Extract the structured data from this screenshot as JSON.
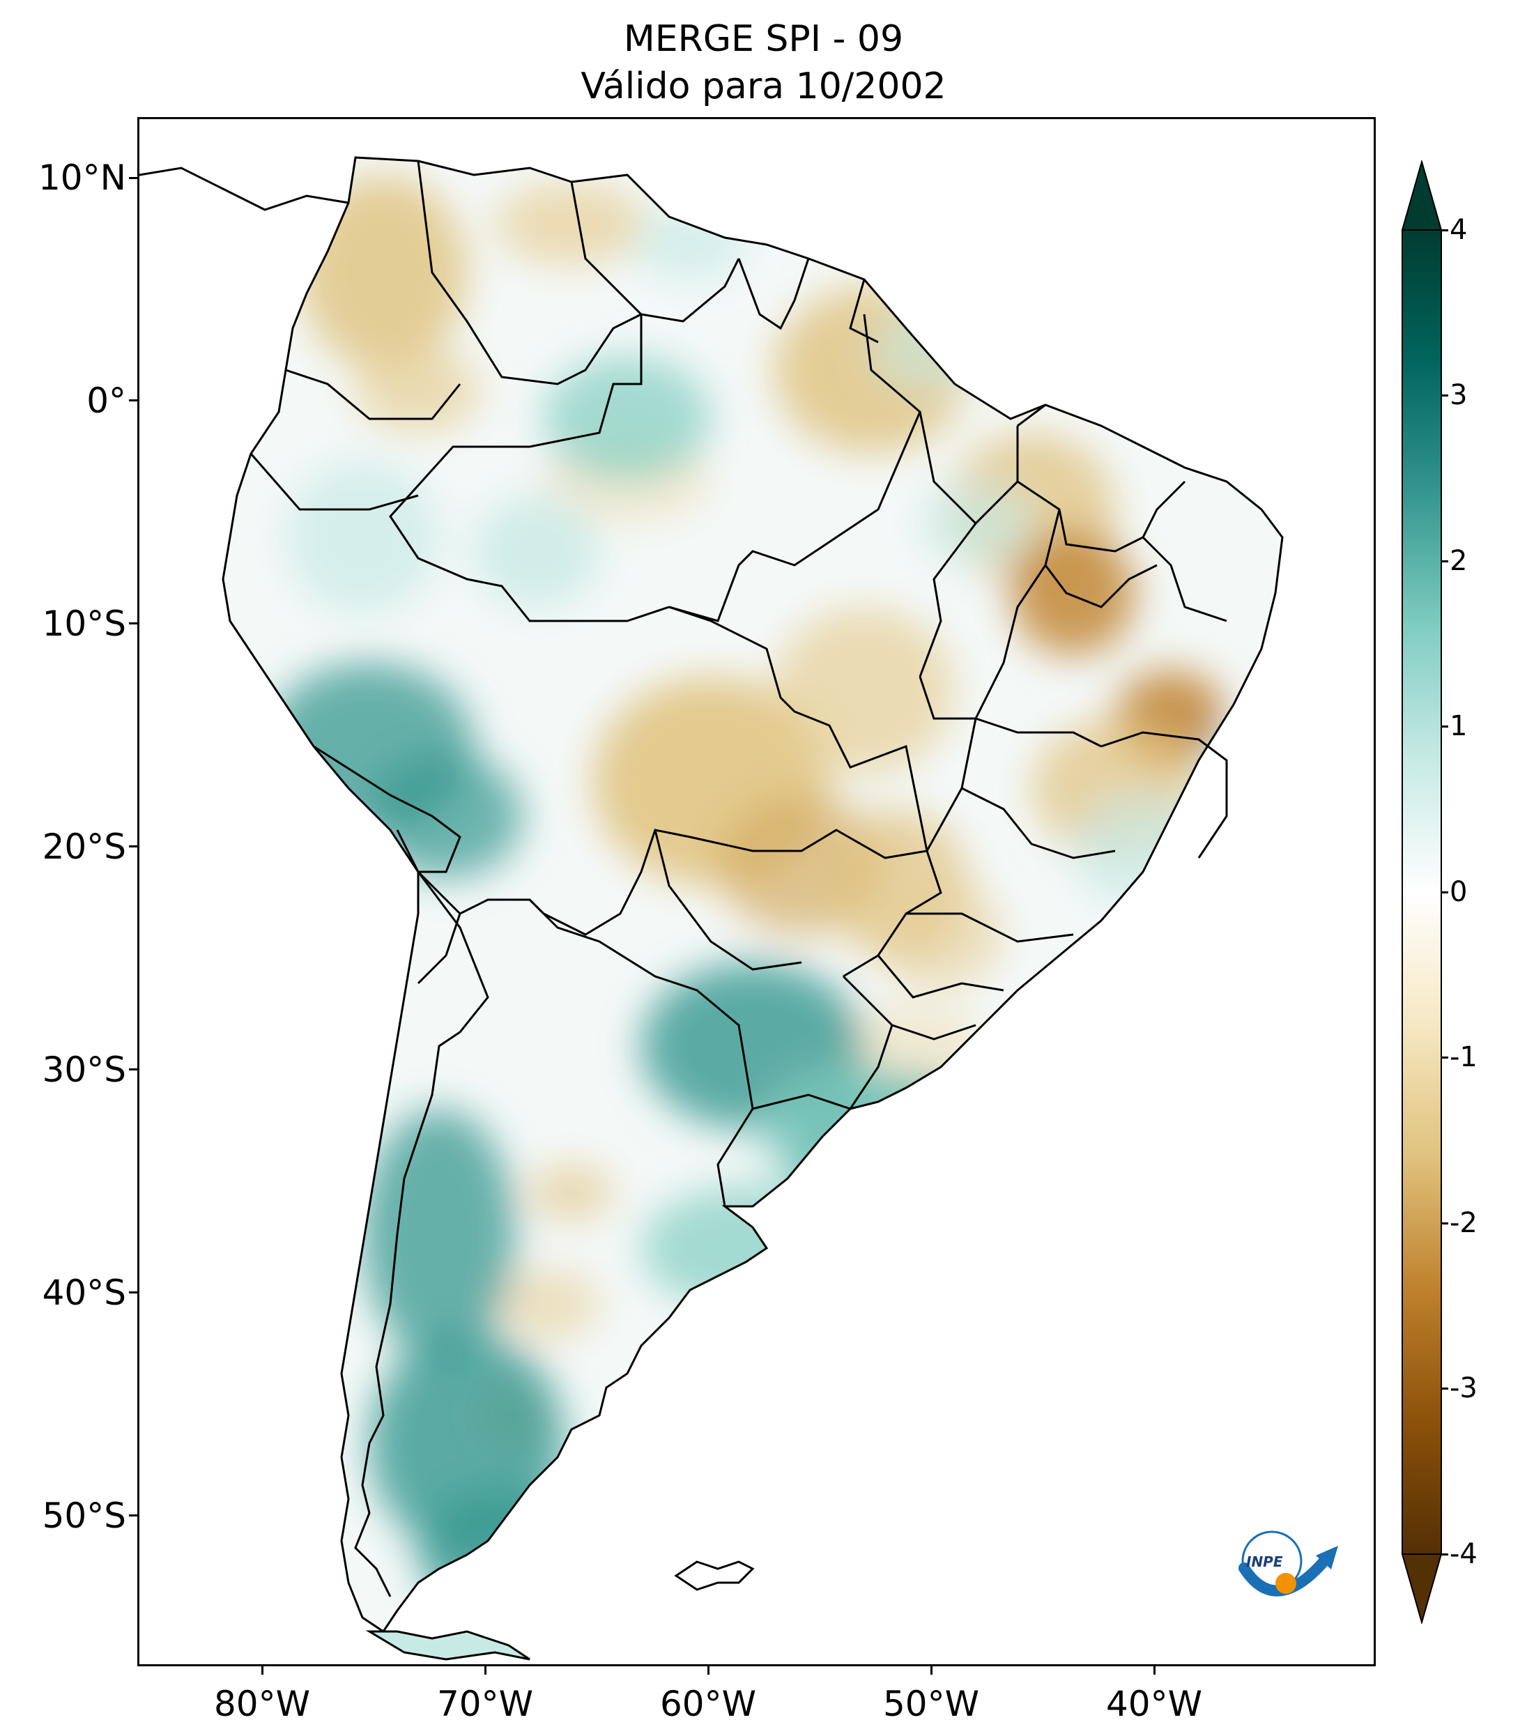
{
  "title": {
    "line1": "MERGE   SPI - 09",
    "line2": "Válido para 10/2002"
  },
  "axes": {
    "lat_labels": [
      "10°N",
      "0°",
      "10°S",
      "20°S",
      "30°S",
      "40°S",
      "50°S"
    ],
    "lon_labels": [
      "80°W",
      "70°W",
      "60°W",
      "50°W",
      "40°W"
    ]
  },
  "colorbar": {
    "labels": [
      "4",
      "3",
      "2",
      "1",
      "0",
      "-1",
      "-2",
      "-3",
      "-4"
    ],
    "extend": "both",
    "colormap": "BrBG",
    "colors": [
      "#543005",
      "#8c510a",
      "#bf812d",
      "#dfc27d",
      "#f6e8c3",
      "#ffffff",
      "#c7eae5",
      "#80cdc1",
      "#35978f",
      "#01665e",
      "#003c30"
    ]
  },
  "logo": {
    "text": "INPE"
  }
}
